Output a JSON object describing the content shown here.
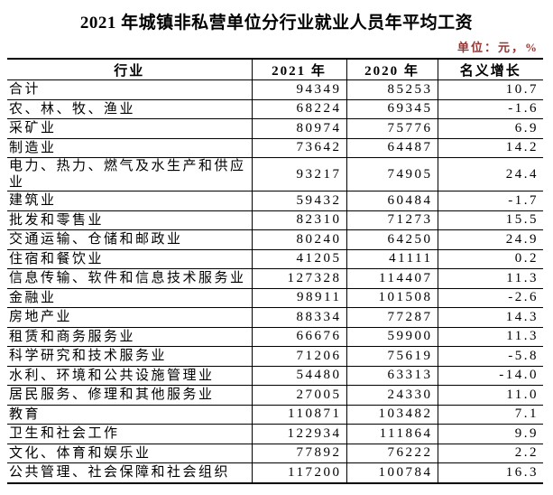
{
  "page": {
    "title": "2021 年城镇非私营单位分行业就业人员年平均工资",
    "unit_note": "单位：元，%"
  },
  "colors": {
    "text": "#000000",
    "unit_text": "#943634",
    "border": "#000000",
    "background": "#ffffff"
  },
  "table": {
    "columns": [
      {
        "key": "industry",
        "label": "行业"
      },
      {
        "key": "y2021",
        "label": "2021 年"
      },
      {
        "key": "y2020",
        "label": "2020 年"
      },
      {
        "key": "growth",
        "label": "名义增长"
      }
    ],
    "rows": [
      {
        "industry": "合计",
        "y2021": "94349",
        "y2020": "85253",
        "growth": "10.7"
      },
      {
        "industry": "农、林、牧、渔业",
        "y2021": "68224",
        "y2020": "69345",
        "growth": "-1.6"
      },
      {
        "industry": "采矿业",
        "y2021": "80974",
        "y2020": "75776",
        "growth": "6.9"
      },
      {
        "industry": "制造业",
        "y2021": "73642",
        "y2020": "64487",
        "growth": "14.2"
      },
      {
        "industry": "电力、热力、燃气及水生产和供应业",
        "y2021": "93217",
        "y2020": "74905",
        "growth": "24.4"
      },
      {
        "industry": "建筑业",
        "y2021": "59432",
        "y2020": "60484",
        "growth": "-1.7"
      },
      {
        "industry": "批发和零售业",
        "y2021": "82310",
        "y2020": "71273",
        "growth": "15.5"
      },
      {
        "industry": "交通运输、仓储和邮政业",
        "y2021": "80240",
        "y2020": "64250",
        "growth": "24.9"
      },
      {
        "industry": "住宿和餐饮业",
        "y2021": "41205",
        "y2020": "41111",
        "growth": "0.2"
      },
      {
        "industry": "信息传输、软件和信息技术服务业",
        "y2021": "127328",
        "y2020": "114407",
        "growth": "11.3"
      },
      {
        "industry": "金融业",
        "y2021": "98911",
        "y2020": "101508",
        "growth": "-2.6"
      },
      {
        "industry": "房地产业",
        "y2021": "88334",
        "y2020": "77287",
        "growth": "14.3"
      },
      {
        "industry": "租赁和商务服务业",
        "y2021": "66676",
        "y2020": "59900",
        "growth": "11.3"
      },
      {
        "industry": "科学研究和技术服务业",
        "y2021": "71206",
        "y2020": "75619",
        "growth": "-5.8"
      },
      {
        "industry": "水利、环境和公共设施管理业",
        "y2021": "54480",
        "y2020": "63313",
        "growth": "-14.0"
      },
      {
        "industry": "居民服务、修理和其他服务业",
        "y2021": "27005",
        "y2020": "24330",
        "growth": "11.0"
      },
      {
        "industry": "教育",
        "y2021": "110871",
        "y2020": "103482",
        "growth": "7.1"
      },
      {
        "industry": "卫生和社会工作",
        "y2021": "122934",
        "y2020": "111864",
        "growth": "9.9"
      },
      {
        "industry": "文化、体育和娱乐业",
        "y2021": "77892",
        "y2020": "76222",
        "growth": "2.2"
      },
      {
        "industry": "公共管理、社会保障和社会组织",
        "y2021": "117200",
        "y2020": "100784",
        "growth": "16.3"
      }
    ]
  }
}
